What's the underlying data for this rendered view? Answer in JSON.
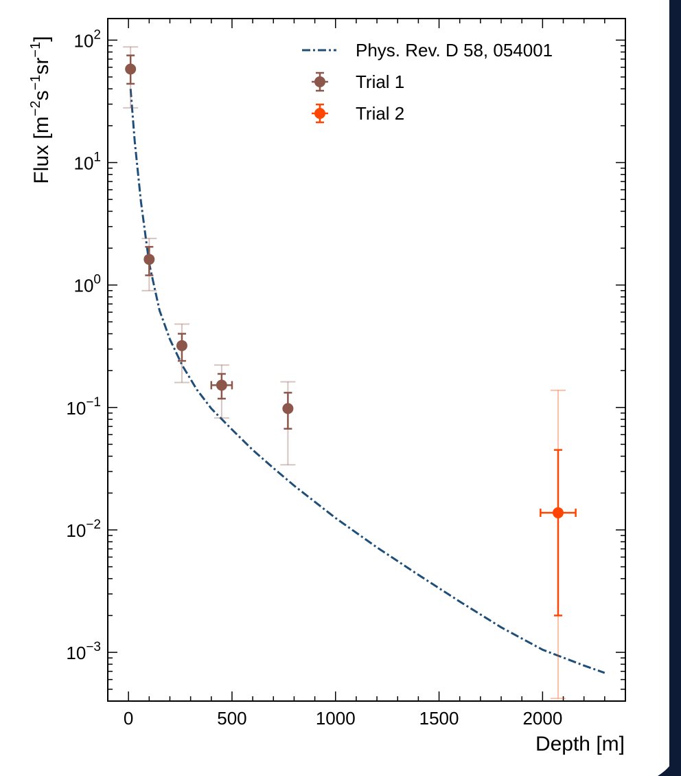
{
  "chart_data": {
    "type": "scatter",
    "title": "",
    "xlabel": "Depth [m]",
    "ylabel": "Flux [m⁻²s⁻¹sr⁻¹]",
    "xlim": [
      -100,
      2400
    ],
    "ylim": [
      0.0004,
      150
    ],
    "yscale": "log",
    "grid": false,
    "legend_position": "top-right",
    "x_ticks": [
      {
        "value": 0,
        "label": "0"
      },
      {
        "value": 500,
        "label": "500"
      },
      {
        "value": 1000,
        "label": "1000"
      },
      {
        "value": 1500,
        "label": "1500"
      },
      {
        "value": 2000,
        "label": "2000"
      }
    ],
    "y_ticks": [
      {
        "value": 0.001,
        "base": "10",
        "exp": "−3"
      },
      {
        "value": 0.01,
        "base": "10",
        "exp": "−2"
      },
      {
        "value": 0.1,
        "base": "10",
        "exp": "−1"
      },
      {
        "value": 1,
        "base": "10",
        "exp": "0"
      },
      {
        "value": 10,
        "base": "10",
        "exp": "1"
      },
      {
        "value": 100,
        "base": "10",
        "exp": "2"
      }
    ],
    "series": [
      {
        "name": "Phys. Rev. D 58, 054001",
        "kind": "line",
        "style": "dash-dot",
        "color": "#1f4e79",
        "x": [
          10,
          30,
          60,
          100,
          150,
          200,
          260,
          330,
          400,
          500,
          600,
          700,
          800,
          1000,
          1200,
          1400,
          1600,
          1800,
          2000,
          2200,
          2300
        ],
        "y": [
          40,
          15,
          4.8,
          1.5,
          0.62,
          0.36,
          0.22,
          0.14,
          0.098,
          0.066,
          0.045,
          0.032,
          0.023,
          0.0125,
          0.0072,
          0.0043,
          0.0026,
          0.0016,
          0.00105,
          0.00078,
          0.00068
        ]
      },
      {
        "name": "Trial 1",
        "kind": "points",
        "color": "#8c564b",
        "points": [
          {
            "x": 10,
            "y": 58,
            "xerr": 0,
            "yerr_stat": [
              44,
              75
            ],
            "yerr_sys": [
              28,
              88
            ]
          },
          {
            "x": 100,
            "y": 1.62,
            "xerr": 0,
            "yerr_stat": [
              1.2,
              2.05
            ],
            "yerr_sys": [
              0.9,
              2.4
            ]
          },
          {
            "x": 258,
            "y": 0.32,
            "xerr": 0,
            "yerr_stat": [
              0.24,
              0.4
            ],
            "yerr_sys": [
              0.16,
              0.48
            ]
          },
          {
            "x": 450,
            "y": 0.152,
            "xerr": 50,
            "yerr_stat": [
              0.118,
              0.188
            ],
            "yerr_sys": [
              0.082,
              0.222
            ]
          },
          {
            "x": 770,
            "y": 0.098,
            "xerr": 0,
            "yerr_stat": [
              0.067,
              0.132
            ],
            "yerr_sys": [
              0.034,
              0.162
            ]
          }
        ]
      },
      {
        "name": "Trial 2",
        "kind": "points",
        "color": "#ff4500",
        "points": [
          {
            "x": 2075,
            "y": 0.0138,
            "xerr": 85,
            "yerr_stat": [
              0.002,
              0.045
            ],
            "yerr_sys": [
              0.00042,
              0.138
            ]
          }
        ]
      }
    ]
  }
}
